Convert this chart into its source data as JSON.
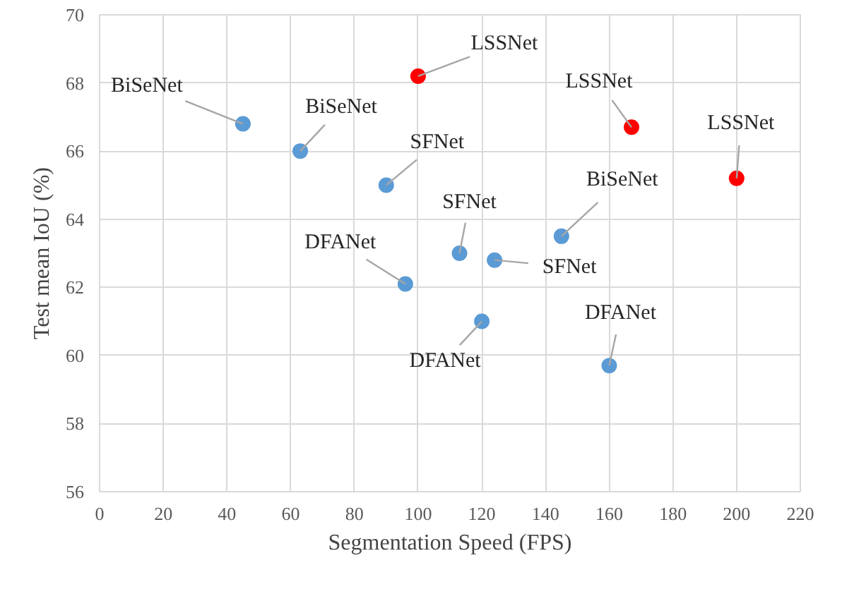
{
  "chart_data": {
    "type": "scatter",
    "xlabel": "Segmentation Speed (FPS)",
    "ylabel": "Test mean IoU (%)",
    "xlim": [
      0,
      220
    ],
    "xticks": [
      0,
      20,
      40,
      60,
      80,
      100,
      120,
      140,
      160,
      180,
      200,
      220
    ],
    "ylim": [
      56,
      70
    ],
    "yticks": [
      56,
      58,
      60,
      62,
      64,
      66,
      68,
      70
    ],
    "grid": true,
    "marker": "circle",
    "series": [
      {
        "color": "#5b9bd5",
        "x": [
          45,
          63,
          90,
          96,
          113,
          124,
          120,
          145,
          160
        ],
        "values": [
          66.8,
          66.0,
          65.0,
          62.1,
          63.0,
          62.8,
          61.0,
          63.5,
          59.7
        ]
      },
      {
        "color": "#ff0000",
        "x": [
          100,
          167,
          200
        ],
        "values": [
          68.2,
          66.7,
          65.2
        ]
      }
    ],
    "annotations": [
      {
        "text": "BiSeNet",
        "x": 45,
        "y": 66.8
      },
      {
        "text": "BiSeNet",
        "x": 63,
        "y": 66.0
      },
      {
        "text": "SFNet",
        "x": 90,
        "y": 65.0
      },
      {
        "text": "DFANet",
        "x": 96,
        "y": 62.1
      },
      {
        "text": "SFNet",
        "x": 113,
        "y": 63.0
      },
      {
        "text": "SFNet",
        "x": 124,
        "y": 62.8
      },
      {
        "text": "DFANet",
        "x": 120,
        "y": 61.0
      },
      {
        "text": "BiSeNet",
        "x": 145,
        "y": 63.5
      },
      {
        "text": "DFANet",
        "x": 160,
        "y": 59.7
      },
      {
        "text": "LSSNet",
        "x": 100,
        "y": 68.2
      },
      {
        "text": "LSSNet",
        "x": 167,
        "y": 66.7
      },
      {
        "text": "LSSNet",
        "x": 200,
        "y": 65.2
      }
    ]
  }
}
